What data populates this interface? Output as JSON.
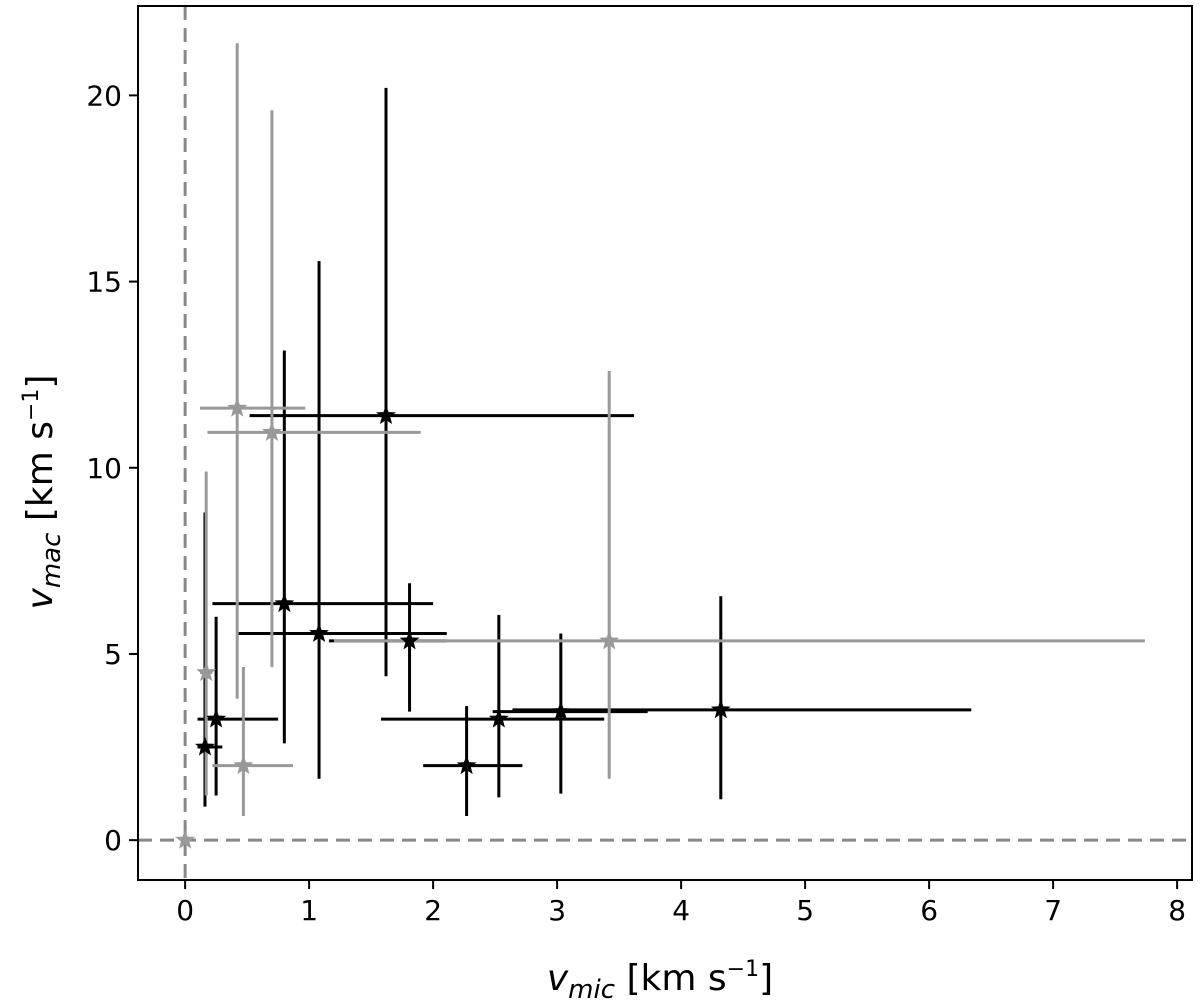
{
  "chart_data": {
    "type": "scatter",
    "title": "",
    "xlabel": {
      "base": "v",
      "sub": "mic",
      "unit_prefix": " [km s",
      "unit_sup": "−1",
      "unit_suffix": "]"
    },
    "ylabel": {
      "base": "v",
      "sub": "mac",
      "unit_prefix": " [km s",
      "unit_sup": "−1",
      "unit_suffix": "]"
    },
    "xlim": [
      -0.38,
      8.12
    ],
    "ylim": [
      -1.07,
      22.4
    ],
    "xticks": [
      0,
      1,
      2,
      3,
      4,
      5,
      6,
      7,
      8
    ],
    "yticks": [
      0,
      5,
      10,
      15,
      20
    ],
    "xtick_labels": [
      "0",
      "1",
      "2",
      "3",
      "4",
      "5",
      "6",
      "7",
      "8"
    ],
    "ytick_labels": [
      "0",
      "5",
      "10",
      "15",
      "20"
    ],
    "grid": false,
    "reference_lines": [
      {
        "orientation": "vertical",
        "value": 0,
        "style": "dashed",
        "color": "#888888"
      },
      {
        "orientation": "horizontal",
        "value": 0,
        "style": "dashed",
        "color": "#888888"
      }
    ],
    "marker": "star",
    "series": [
      {
        "color": "#000000",
        "points": [
          {
            "x": 1.62,
            "y": 11.4,
            "xerr": [
              1.1,
              2.0
            ],
            "yerr": [
              7.0,
              8.8
            ]
          },
          {
            "x": 0.8,
            "y": 6.35,
            "xerr": [
              0.58,
              1.2
            ],
            "yerr": [
              3.75,
              6.8
            ]
          },
          {
            "x": 1.08,
            "y": 5.55,
            "xerr": [
              0.65,
              1.03
            ],
            "yerr": [
              3.9,
              10.0
            ]
          },
          {
            "x": 1.81,
            "y": 5.35,
            "xerr": [
              0.65,
              0.3
            ],
            "yerr": [
              1.9,
              1.55
            ]
          },
          {
            "x": 0.25,
            "y": 3.25,
            "xerr": [
              0.15,
              0.5
            ],
            "yerr": [
              2.05,
              2.75
            ]
          },
          {
            "x": 0.16,
            "y": 2.5,
            "xerr": [
              0.06,
              0.14
            ],
            "yerr": [
              1.6,
              6.3
            ]
          },
          {
            "x": 2.27,
            "y": 2.0,
            "xerr": [
              0.35,
              0.45
            ],
            "yerr": [
              1.35,
              1.6
            ]
          },
          {
            "x": 2.53,
            "y": 3.25,
            "xerr": [
              0.95,
              0.85
            ],
            "yerr": [
              2.1,
              2.8
            ]
          },
          {
            "x": 3.03,
            "y": 3.45,
            "xerr": [
              0.55,
              0.7
            ],
            "yerr": [
              2.2,
              2.1
            ]
          },
          {
            "x": 4.32,
            "y": 3.5,
            "xerr": [
              1.68,
              2.02
            ],
            "yerr": [
              2.4,
              3.05
            ]
          }
        ]
      },
      {
        "color": "#999999",
        "points": [
          {
            "x": 0.42,
            "y": 11.6,
            "xerr": [
              0.3,
              0.55
            ],
            "yerr": [
              7.8,
              9.8
            ]
          },
          {
            "x": 0.7,
            "y": 10.95,
            "xerr": [
              0.52,
              1.2
            ],
            "yerr": [
              6.3,
              8.65
            ]
          },
          {
            "x": 3.42,
            "y": 5.35,
            "xerr": [
              2.22,
              4.32
            ],
            "yerr": [
              3.7,
              7.25
            ]
          },
          {
            "x": 0.17,
            "y": 4.5,
            "xerr": [
              0.05,
              0.05
            ],
            "yerr": [
              3.3,
              5.4
            ]
          },
          {
            "x": 0.47,
            "y": 2.0,
            "xerr": [
              0.25,
              0.4
            ],
            "yerr": [
              1.35,
              2.65
            ]
          },
          {
            "x": 0.0,
            "y": 0.0,
            "xerr": [
              0,
              0
            ],
            "yerr": [
              0,
              0
            ]
          }
        ]
      }
    ]
  }
}
